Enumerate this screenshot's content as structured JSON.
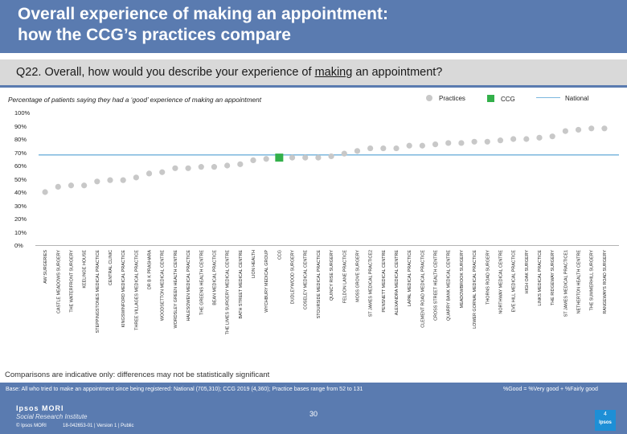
{
  "header": {
    "title_line1": "Overall experience of making an appointment:",
    "title_line2": "how the CCG’s practices compare"
  },
  "question": {
    "prefix": "Q22. Overall, how would you describe your experience of ",
    "emphasis": "making",
    "suffix": " an appointment?"
  },
  "chart_subtitle": "Percentage of patients saying they had a ‘good’ experience of making an appointment",
  "legend": {
    "practices": "Practices",
    "ccg": "CCG",
    "national": "National"
  },
  "colors": {
    "header_bg": "#5a7bb0",
    "practice_dot": "#c8c8c8",
    "ccg_square": "#33b04a",
    "national_line": "#7bb7de"
  },
  "y_ticks": [
    "100%",
    "90%",
    "80%",
    "70%",
    "60%",
    "50%",
    "40%",
    "30%",
    "20%",
    "10%",
    "0%"
  ],
  "chart_data": {
    "type": "scatter",
    "title": "Percentage of patients saying they had a ‘good’ experience of making an appointment",
    "xlabel": "",
    "ylabel": "",
    "ylim": [
      0,
      100
    ],
    "national_value": 68,
    "ccg_category": "CCG",
    "categories": [
      "AW SURGERIES",
      "CASTLE MEADOWS SURGERY",
      "THE WATERFRONT SURGERY",
      "KEELINGE HOUSE",
      "STEPPINGSTONES MEDICAL PRACTICE",
      "CENTRAL CLINIC",
      "KINGSWINFORD MEDICAL PRACTICE",
      "THREE VILLAGES MEDICAL PRACTICE",
      "DR B K PRASHARA",
      "WOODSETTON MEDICAL CENTRE",
      "WORDSLEY GREEN HEALTH CENTRE",
      "HALESOWEN MEDICAL PRACTICE",
      "THE GREENS HEALTH CENTRE",
      "BEAN MEDICAL PRACTICE",
      "THE LIMES SURGERY MEDICAL CENTRE",
      "BATH STREET MEDICAL CENTRE",
      "LION HEALTH",
      "WYCHBURY MEDICAL GROUP",
      "CCG",
      "DUDLEYWOOD SURGERY",
      "COSELEY MEDICAL CENTRE",
      "STOURSIDE MEDICAL PRACTICE",
      "QUINCY RISE SURGERY",
      "FELDON LANE PRACTICE",
      "MOSS GROVE SURGERY",
      "ST JAMES MEDICAL PRACTICE2",
      "PENSNETT MEDICAL CENTRE",
      "ALEXANDRA MEDICAL CENTRE",
      "LAPAL MEDICAL PRACTICE",
      "CLEMENT ROAD MEDICAL PRACTICE",
      "CROSS STREET HEALTH CENTRE",
      "QUARRY BANK MEDICAL CENTRE",
      "MEADOWBROOK SURGERY",
      "LOWER GORNAL MEDICAL PRACTICE",
      "THORNS ROAD SURGERY",
      "NORTHWAY MEDICAL CENTRE",
      "EVE HILL MEDICAL PRACTICE",
      "HIGH OAK SURGERY",
      "LINKS MEDICAL PRACTICE",
      "THE RIDGEWAY SURGERY",
      "ST JAMES MEDICAL PRACTICE1",
      "NETHERTON HEALTH CENTRE",
      "THE SUMMERHILL SURGERY",
      "RANGEWAYS ROAD SURGERY"
    ],
    "values": [
      40,
      44,
      45,
      45,
      48,
      49,
      49,
      51,
      54,
      55,
      58,
      58,
      59,
      59,
      60,
      61,
      64,
      65,
      66,
      66,
      66,
      66,
      67,
      69,
      71,
      73,
      73,
      73,
      75,
      75,
      76,
      77,
      77,
      78,
      78,
      79,
      80,
      80,
      81,
      82,
      86,
      87,
      88,
      88
    ]
  },
  "footnote": "Comparisons are indicative only: differences may not be statistically significant",
  "base_text": "Base: All who tried to make an appointment since being registered: National (705,310); CCG 2019 (4,360); Practice bases range from 52 to 131",
  "base_right": "%Good = %Very good + %Fairly good",
  "footer": {
    "logo_line1": "Ipsos MORI",
    "logo_line2": "Social Research Institute",
    "copyright": "© Ipsos MORI",
    "job_ref": "18-042653-01 | Version 1 | Public",
    "page_number": "30",
    "ipsos_index": "4",
    "ipsos_word": "Ipsos"
  }
}
